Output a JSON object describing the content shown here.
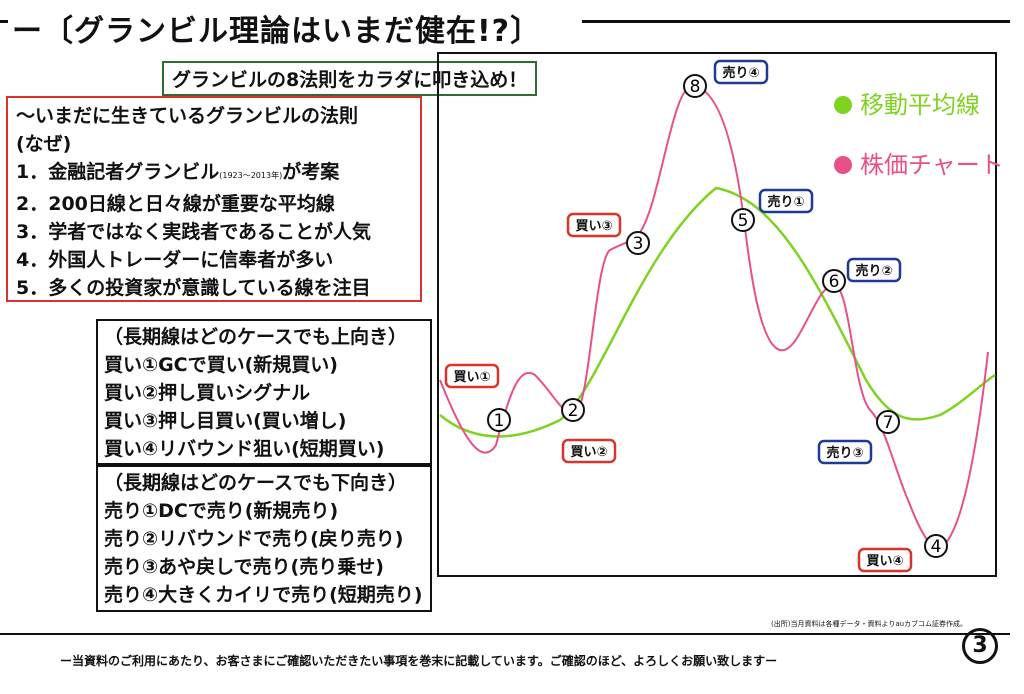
{
  "title": "ー〔グランビル理論はいまだ健在!?〕",
  "subtitle": "グランビルの8法則をカラダに叩き込め！",
  "reasons": {
    "heading": "〜いまだに生きているグランビルの法則",
    "why": "(なぜ)",
    "items": [
      {
        "pre": "1．金融記者グランビル",
        "years": "(1923〜2013年)",
        "post": "が考案"
      },
      {
        "pre": "2．200日線と日々線が重要な平均線"
      },
      {
        "pre": "3．学者ではなく実践者であることが人気"
      },
      {
        "pre": "4．外国人トレーダーに信奉者が多い"
      },
      {
        "pre": "5．多くの投資家が意識している線を注目"
      }
    ]
  },
  "buy_rules": {
    "heading": "（長期線はどのケースでも上向き）",
    "items": [
      "買い①GCで買い(新規買い)",
      "買い②押し買いシグナル",
      "買い③押し目買い(買い増し)",
      "買い④リバウンド狙い(短期買い)"
    ]
  },
  "sell_rules": {
    "heading": "（長期線はどのケースでも下向き）",
    "items": [
      "売り①DCで売り(新規売り)",
      "売り②リバウンドで売り(戻り売り)",
      "売り③あや戻しで売り(売り乗せ)",
      "売り④大きくカイリで売り(短期売り)"
    ]
  },
  "chart": {
    "legend": [
      {
        "label": "移動平均線",
        "color": "#7ed321"
      },
      {
        "label": "株価チャート",
        "color": "#e8508a"
      }
    ],
    "ma_color": "#7ed321",
    "price_color": "#e8508a",
    "buy_color": "#d9342b",
    "sell_color": "#1f3a93",
    "points": [
      {
        "num": "1",
        "tag": "買い①",
        "type": "buy"
      },
      {
        "num": "2",
        "tag": "買い②",
        "type": "buy"
      },
      {
        "num": "3",
        "tag": "買い③",
        "type": "buy"
      },
      {
        "num": "4",
        "tag": "買い④",
        "type": "buy"
      },
      {
        "num": "5",
        "tag": "売り①",
        "type": "sell"
      },
      {
        "num": "6",
        "tag": "売り②",
        "type": "sell"
      },
      {
        "num": "7",
        "tag": "売り③",
        "type": "sell"
      },
      {
        "num": "8",
        "tag": "売り④",
        "type": "sell"
      }
    ]
  },
  "source_note": "(出所)当月資料は各種データ・資料よりauカブコム証券作成。",
  "footer": "ー当資料のご利用にあたり、お客さまにご確認いただきたい事項を巻末に記載しています。ご確認のほど、よろしくお願い致しますー",
  "page_number": "3"
}
